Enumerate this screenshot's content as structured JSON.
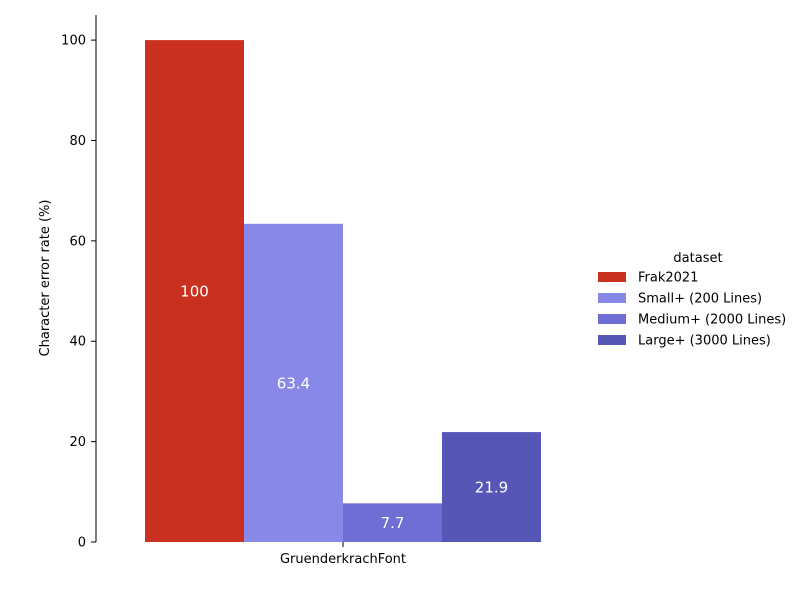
{
  "chart_data": {
    "type": "bar",
    "title": "",
    "xlabel": "",
    "ylabel": "Character error rate (%)",
    "categories": [
      "GruenderkrachFont"
    ],
    "ylim": [
      0,
      105
    ],
    "yticks": [
      0,
      20,
      40,
      60,
      80,
      100
    ],
    "grid": false,
    "legend_position": "right",
    "legend_title": "dataset",
    "series": [
      {
        "name": "Frak2021",
        "values": [
          100
        ],
        "label": "100",
        "color": "#c9301f"
      },
      {
        "name": "Small+ (200 Lines)",
        "values": [
          63.4
        ],
        "label": "63.4",
        "color": "#8888e8"
      },
      {
        "name": "Medium+  (2000 Lines)",
        "values": [
          7.7
        ],
        "label": "7.7",
        "color": "#6e6ed4"
      },
      {
        "name": "Large+ (3000 Lines)",
        "values": [
          21.9
        ],
        "label": "21.9",
        "color": "#5656b6"
      }
    ]
  }
}
